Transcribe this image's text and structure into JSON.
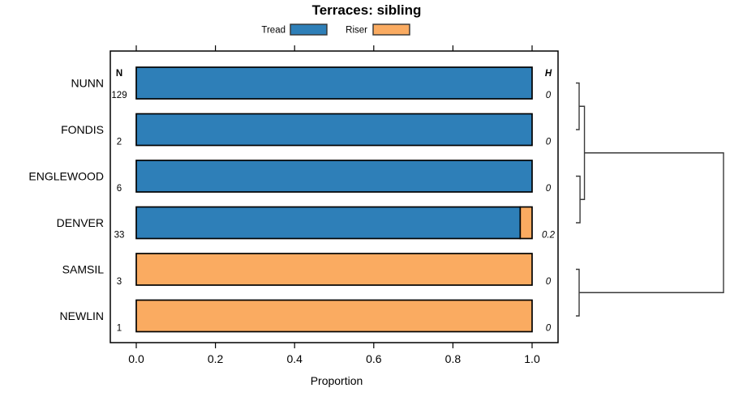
{
  "chart_data": {
    "type": "bar",
    "orientation": "horizontal",
    "stacked": true,
    "title": "Terraces: sibling",
    "xlabel": "Proportion",
    "xlim": [
      0,
      1
    ],
    "x_ticks": [
      "0.0",
      "0.2",
      "0.4",
      "0.6",
      "0.8",
      "1.0"
    ],
    "grid": false,
    "categories": [
      "NUNN",
      "FONDIS",
      "ENGLEWOOD",
      "DENVER",
      "SAMSIL",
      "NEWLIN"
    ],
    "series": [
      {
        "name": "Tread",
        "color": "#2E7FB8",
        "values": [
          1.0,
          1.0,
          1.0,
          0.97,
          0.0,
          0.0
        ]
      },
      {
        "name": "Riser",
        "color": "#FAAB61",
        "values": [
          0.0,
          0.0,
          0.0,
          0.03,
          1.0,
          1.0
        ]
      }
    ],
    "columns": {
      "n": "N",
      "h": "H"
    },
    "annotations": {
      "n": [
        "129",
        "2",
        "6",
        "33",
        "3",
        "1"
      ],
      "h": [
        "0",
        "0",
        "0",
        "0.2",
        "0",
        "0"
      ]
    },
    "legend": {
      "position": "top",
      "entries": [
        {
          "label": "Tread",
          "color": "#2E7FB8"
        },
        {
          "label": "Riser",
          "color": "#FAAB61"
        }
      ]
    },
    "colors": {
      "bar_stroke": "#000000",
      "dendrogram_line": "#3a3a3a",
      "box_stroke": "#000000",
      "text": "#000000"
    },
    "dendrogram": {
      "leaves": [
        "NUNN",
        "FONDIS",
        "ENGLEWOOD",
        "DENVER",
        "SAMSIL",
        "NEWLIN"
      ],
      "merges": [
        {
          "id": "m1",
          "children": [
            "NUNN",
            "FONDIS"
          ],
          "height": 0.022
        },
        {
          "id": "m2",
          "children": [
            "ENGLEWOOD",
            "DENVER"
          ],
          "height": 0.028
        },
        {
          "id": "m3",
          "children": [
            "m1",
            "m2"
          ],
          "height": 0.058
        },
        {
          "id": "m4",
          "children": [
            "SAMSIL",
            "NEWLIN"
          ],
          "height": 0.022
        },
        {
          "id": "m5",
          "children": [
            "m3",
            "m4"
          ],
          "height": 1.0
        }
      ]
    }
  }
}
